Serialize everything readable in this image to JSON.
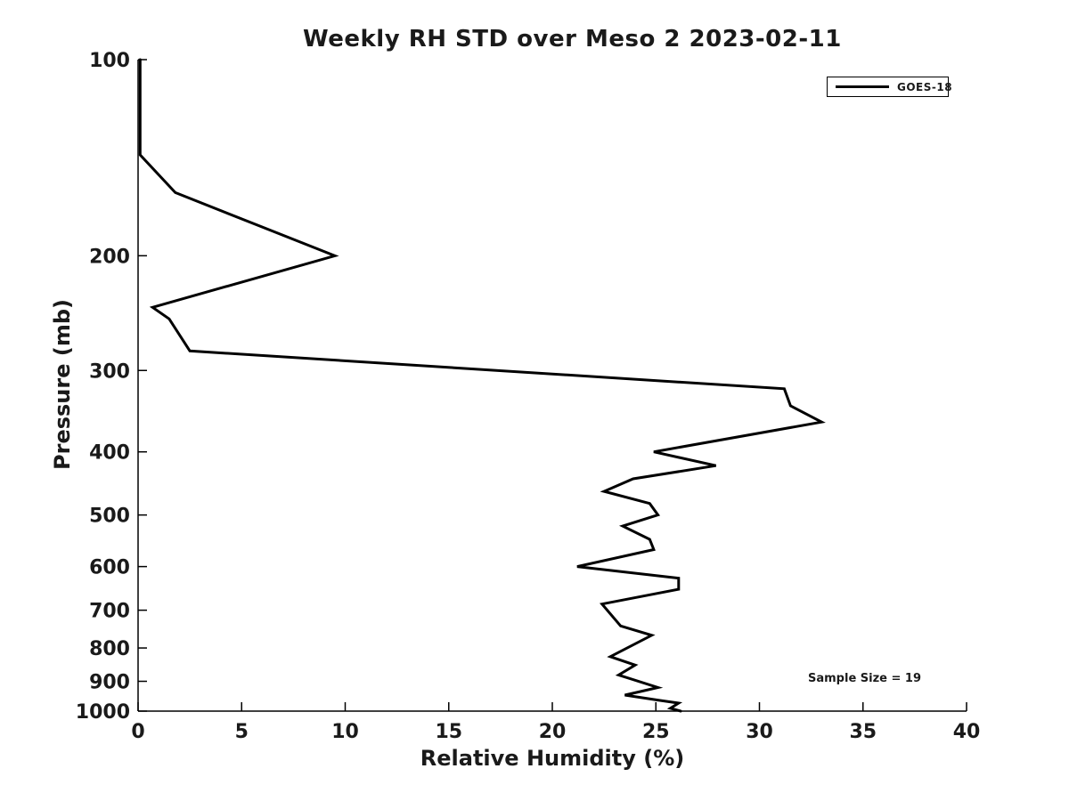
{
  "figure": {
    "title": "Weekly RH STD over Meso 2 2023-02-11",
    "x_axis_label": "Relative Humidity (%)",
    "y_axis_label": "Pressure (mb)",
    "annotation": "Sample Size = 19",
    "legend": {
      "entries": [
        {
          "label": "GOES-18",
          "color": "#000000"
        }
      ]
    }
  },
  "chart_data": {
    "type": "line",
    "title": "Weekly RH STD over Meso 2 2023-02-11",
    "xlabel": "Relative Humidity (%)",
    "ylabel": "Pressure (mb)",
    "xlim": [
      0,
      40
    ],
    "x_ticks": [
      0,
      5,
      10,
      15,
      20,
      25,
      30,
      35,
      40
    ],
    "ylim": [
      100,
      1000
    ],
    "y_ticks": [
      100,
      200,
      300,
      400,
      500,
      600,
      700,
      800,
      900,
      1000
    ],
    "y_scale": "log",
    "y_axis_inverted": true,
    "grid": false,
    "legend_position": "upper right",
    "annotation": "Sample Size = 19",
    "line_color": "#000000",
    "series": [
      {
        "name": "GOES-18",
        "color": "#000000",
        "points_rh_pressure": [
          [
            0.1,
            100
          ],
          [
            0.1,
            140
          ],
          [
            1.8,
            160
          ],
          [
            9.5,
            200
          ],
          [
            0.7,
            240
          ],
          [
            1.5,
            250
          ],
          [
            2.5,
            280
          ],
          [
            31.2,
            320
          ],
          [
            31.5,
            340
          ],
          [
            33.0,
            360
          ],
          [
            24.9,
            400
          ],
          [
            27.9,
            420
          ],
          [
            23.9,
            440
          ],
          [
            22.5,
            460
          ],
          [
            24.7,
            480
          ],
          [
            25.1,
            500
          ],
          [
            23.4,
            520
          ],
          [
            24.7,
            545
          ],
          [
            24.9,
            565
          ],
          [
            21.2,
            600
          ],
          [
            26.1,
            625
          ],
          [
            26.1,
            650
          ],
          [
            22.4,
            685
          ],
          [
            23.3,
            740
          ],
          [
            24.8,
            765
          ],
          [
            22.8,
            825
          ],
          [
            24.0,
            850
          ],
          [
            23.2,
            880
          ],
          [
            25.1,
            920
          ],
          [
            23.5,
            945
          ],
          [
            25.2,
            963
          ],
          [
            26.1,
            972
          ],
          [
            25.7,
            990
          ],
          [
            26.2,
            1000
          ]
        ]
      }
    ]
  }
}
